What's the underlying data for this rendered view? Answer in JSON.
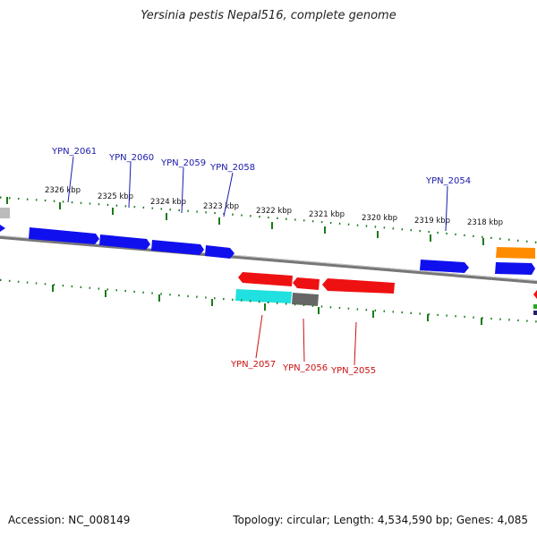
{
  "title": "Yersinia pestis Nepal516, complete genome",
  "accession_text": "Accession: NC_008149",
  "topology_text": "Topology: circular; Length: 4,534,590 bp; Genes: 4,085",
  "colors": {
    "forward_gene": "#1010ee",
    "reverse_gene": "#ee1111",
    "cyan_gene": "#20e0e0",
    "gray_gene": "#666666",
    "orange_gene": "#ff8c00",
    "tick": "#1a7a1a",
    "backbone": "#777777",
    "forward_label": "#1a1aaa",
    "reverse_label": "#cc1111"
  },
  "kbp_labels": [
    "2326 kbp",
    "2325 kbp",
    "2324 kbp",
    "2323 kbp",
    "2322 kbp",
    "2321 kbp",
    "2320 kbp",
    "2319 kbp",
    "2318 kbp"
  ],
  "gene_labels": {
    "ypn_2061": "YPN_2061",
    "ypn_2060": "YPN_2060",
    "ypn_2059": "YPN_2059",
    "ypn_2058": "YPN_2058",
    "ypn_2054": "YPN_2054",
    "ypn_2057": "YPN_2057",
    "ypn_2056": "YPN_2056",
    "ypn_2055": "YPN_2055"
  }
}
